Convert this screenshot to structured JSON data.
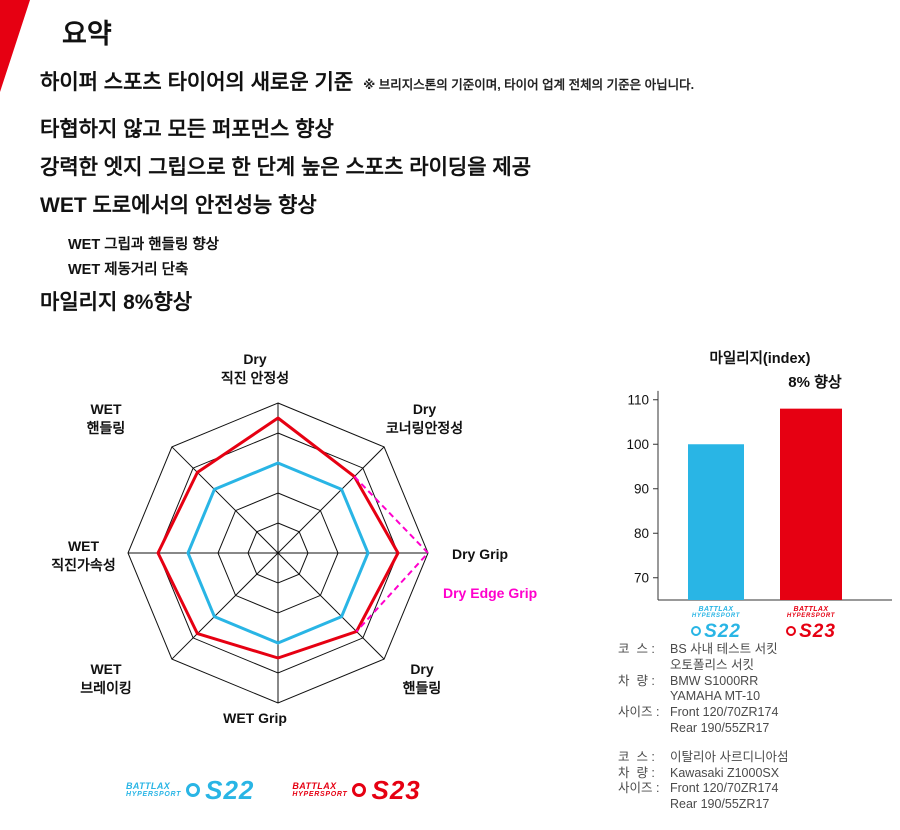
{
  "colors": {
    "brand_red": "#e60012",
    "s22_blue": "#29b5e5",
    "edge_magenta": "#ff00cc"
  },
  "summary": {
    "title": "요약",
    "headline": "하이퍼 스포츠 타이어의 새로운 기준",
    "headline_note": "※ 브리지스톤의 기준이며, 타이어 업계 전체의 기준은 아닙니다.",
    "points": [
      "타협하지 않고 모든 퍼포먼스 향상",
      "강력한 엣지 그립으로 한 단계 높은 스포츠 라이딩을 제공",
      "WET 도로에서의 안전성능 향상"
    ],
    "sub_points": [
      "WET 그립과 핸들링 향상",
      "WET 제동거리 단축"
    ],
    "mileage": "마일리지 8%향상"
  },
  "logos": {
    "s22": {
      "brand": "BATTLAX",
      "sub": "HYPERSPORT",
      "model": "S22",
      "color": "#29b5e5"
    },
    "s23": {
      "brand": "BATTLAX",
      "sub": "HYPERSPORT",
      "model": "S23",
      "color": "#e60012"
    }
  },
  "chart_data": [
    {
      "type": "radar",
      "scale_max": 5,
      "grid_levels": 5,
      "axes": [
        {
          "lines": [
            "Dry",
            "직진 안정성"
          ]
        },
        {
          "lines": [
            "Dry",
            "코너링안정성"
          ]
        },
        {
          "lines": [
            "Dry Grip"
          ]
        },
        {
          "lines": [
            "Dry",
            "핸들링"
          ]
        },
        {
          "lines": [
            "WET Grip"
          ]
        },
        {
          "lines": [
            "WET",
            "브레이킹"
          ]
        },
        {
          "lines": [
            "WET",
            "직진가속성"
          ]
        },
        {
          "lines": [
            "WET",
            "핸들링"
          ]
        }
      ],
      "extra_axis_label": "Dry Edge Grip",
      "series": [
        {
          "name": "S22",
          "color": "#29b5e5",
          "values": [
            3,
            3,
            3,
            3,
            3,
            3,
            3,
            3
          ]
        },
        {
          "name": "S23",
          "color": "#e60012",
          "values": [
            4.5,
            3.6,
            4.0,
            3.7,
            3.5,
            3.8,
            4.0,
            3.8
          ]
        }
      ],
      "edge_grip_overlay": {
        "name": "S23 Dry Edge Grip",
        "color": "#ff00cc",
        "dashed": true,
        "points": [
          {
            "axis": 1,
            "value": 3.6
          },
          {
            "axis": 2,
            "value": 5.0
          },
          {
            "axis": 3,
            "value": 3.7
          }
        ]
      }
    },
    {
      "type": "bar",
      "title": "마일리지(index)",
      "annotation": "8% 향상",
      "categories": [
        "S22",
        "S23"
      ],
      "values": [
        100,
        108
      ],
      "bar_colors": [
        "#29b5e5",
        "#e60012"
      ],
      "yticks": [
        70,
        80,
        90,
        100,
        110
      ],
      "ylim": [
        65,
        112
      ],
      "baseline_value": 65,
      "grid": false,
      "legend_position": "below-bars"
    }
  ],
  "test_info": [
    {
      "rows": [
        {
          "label": "코  스 :",
          "lines": [
            "BS 사내 테스트 서킷",
            "오토폴리스 서킷"
          ]
        },
        {
          "label": "차  량 :",
          "lines": [
            "BMW S1000RR",
            "YAMAHA MT-10"
          ]
        },
        {
          "label": "사이즈 :",
          "lines": [
            "Front 120/70ZR174",
            "Rear 190/55ZR17"
          ]
        }
      ]
    },
    {
      "rows": [
        {
          "label": "코  스 :",
          "lines": [
            "이탈리아 사르디니아섬"
          ]
        },
        {
          "label": "차  량 :",
          "lines": [
            "Kawasaki Z1000SX"
          ]
        },
        {
          "label": "사이즈 :",
          "lines": [
            "Front 120/70ZR174",
            "Rear 190/55ZR17"
          ]
        }
      ]
    }
  ]
}
